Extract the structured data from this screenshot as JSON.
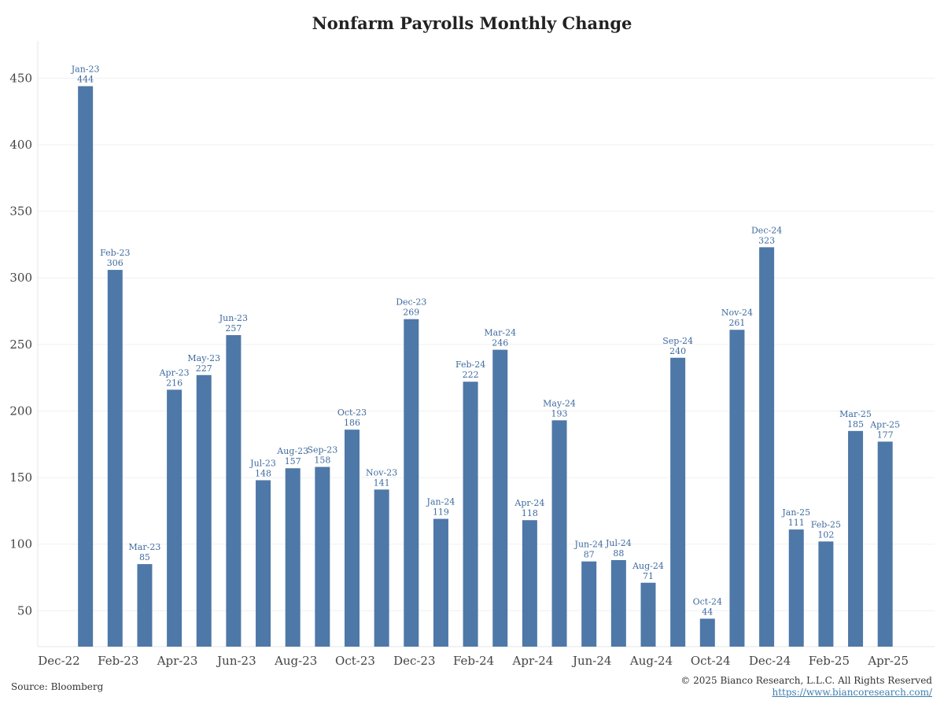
{
  "chart_data": {
    "type": "bar",
    "title": "Nonfarm Payrolls Monthly Change",
    "xlabel": "",
    "ylabel": "",
    "ylim": [
      23,
      478
    ],
    "yticks": [
      50,
      100,
      150,
      200,
      250,
      300,
      350,
      400,
      450
    ],
    "x_axis_labels": [
      "Dec-22",
      "Feb-23",
      "Apr-23",
      "Jun-23",
      "Aug-23",
      "Oct-23",
      "Dec-23",
      "Feb-24",
      "Apr-24",
      "Jun-24",
      "Aug-24",
      "Oct-24",
      "Dec-24",
      "Feb-25",
      "Apr-25"
    ],
    "categories": [
      "Jan-23",
      "Feb-23",
      "Mar-23",
      "Apr-23",
      "May-23",
      "Jun-23",
      "Jul-23",
      "Aug-23",
      "Sep-23",
      "Oct-23",
      "Nov-23",
      "Dec-23",
      "Jan-24",
      "Feb-24",
      "Mar-24",
      "Apr-24",
      "May-24",
      "Jun-24",
      "Jul-24",
      "Aug-24",
      "Sep-24",
      "Oct-24",
      "Nov-24",
      "Dec-24",
      "Jan-25",
      "Feb-25",
      "Mar-25",
      "Apr-25"
    ],
    "values": [
      444,
      306,
      85,
      216,
      227,
      257,
      148,
      157,
      158,
      186,
      141,
      269,
      119,
      222,
      246,
      118,
      193,
      87,
      88,
      71,
      240,
      44,
      261,
      323,
      111,
      102,
      185,
      177
    ],
    "bar_color": "#4e78a7",
    "grid": true,
    "legend": "none"
  },
  "footer": {
    "source": "Source: Bloomberg",
    "copyright": "© 2025 Bianco Research, L.L.C. All Rights Reserved",
    "url": "https://www.biancoresearch.com/"
  }
}
